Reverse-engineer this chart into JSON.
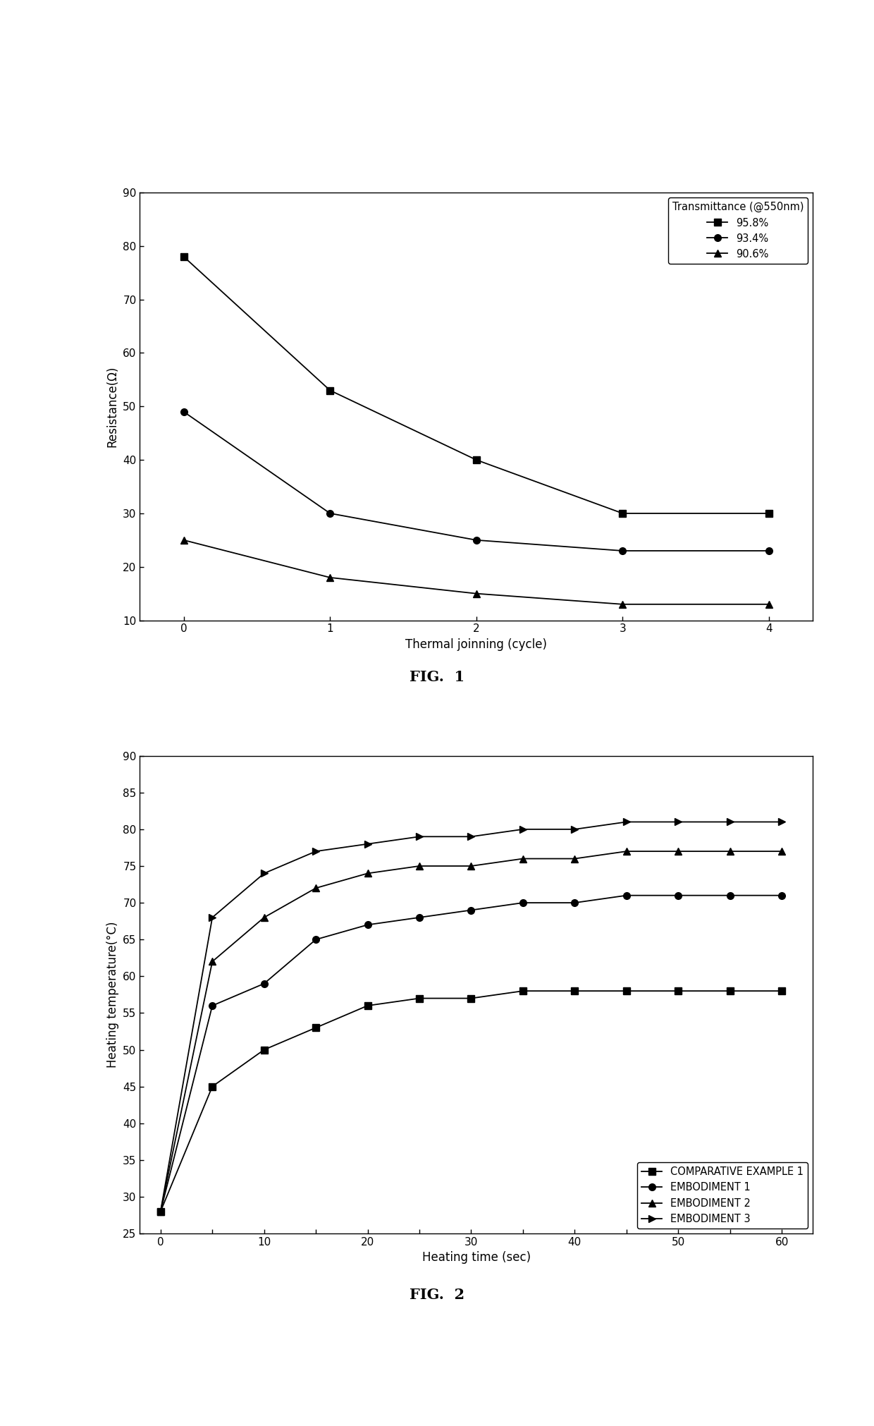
{
  "fig1": {
    "xlabel": "Thermal joinning (cycle)",
    "ylabel": "Resistance(Ω)",
    "xlim": [
      -0.3,
      4.3
    ],
    "ylim": [
      10,
      90
    ],
    "yticks": [
      10,
      20,
      30,
      40,
      50,
      60,
      70,
      80,
      90
    ],
    "xticks": [
      0,
      1,
      2,
      3,
      4
    ],
    "series": [
      {
        "label": "95.8%",
        "marker": "s",
        "x": [
          0,
          1,
          2,
          3,
          4
        ],
        "y": [
          78,
          53,
          40,
          30,
          30
        ]
      },
      {
        "label": "93.4%",
        "marker": "o",
        "x": [
          0,
          1,
          2,
          3,
          4
        ],
        "y": [
          49,
          30,
          25,
          23,
          23
        ]
      },
      {
        "label": "90.6%",
        "marker": "^",
        "x": [
          0,
          1,
          2,
          3,
          4
        ],
        "y": [
          25,
          18,
          15,
          13,
          13
        ]
      }
    ],
    "legend_title": "Transmittance (@550nm)",
    "fig_label": "FIG.  1"
  },
  "fig2": {
    "xlabel": "Heating time (sec)",
    "ylabel": "Heating temperature(°C)",
    "xlim": [
      -2,
      63
    ],
    "ylim": [
      25,
      90
    ],
    "yticks": [
      25,
      30,
      35,
      40,
      45,
      50,
      55,
      60,
      65,
      70,
      75,
      80,
      85,
      90
    ],
    "xticks": [
      0,
      5,
      10,
      15,
      20,
      25,
      30,
      35,
      40,
      45,
      50,
      55,
      60
    ],
    "xticklabels": [
      "0",
      "",
      "10",
      "",
      "20",
      "",
      "30",
      "",
      "40",
      "",
      "50",
      "",
      "60"
    ],
    "series": [
      {
        "label": "COMPARATIVE EXAMPLE 1",
        "marker": "s",
        "x": [
          0,
          5,
          10,
          15,
          20,
          25,
          30,
          35,
          40,
          45,
          50,
          55,
          60
        ],
        "y": [
          28,
          45,
          50,
          53,
          56,
          57,
          57,
          58,
          58,
          58,
          58,
          58,
          58
        ]
      },
      {
        "label": "EMBODIMENT 1",
        "marker": "o",
        "x": [
          0,
          5,
          10,
          15,
          20,
          25,
          30,
          35,
          40,
          45,
          50,
          55,
          60
        ],
        "y": [
          28,
          56,
          59,
          65,
          67,
          68,
          69,
          70,
          70,
          71,
          71,
          71,
          71
        ]
      },
      {
        "label": "EMBODIMENT 2",
        "marker": "^",
        "x": [
          0,
          5,
          10,
          15,
          20,
          25,
          30,
          35,
          40,
          45,
          50,
          55,
          60
        ],
        "y": [
          28,
          62,
          68,
          72,
          74,
          75,
          75,
          76,
          76,
          77,
          77,
          77,
          77
        ]
      },
      {
        "label": "EMBODIMENT 3",
        "marker": ">",
        "x": [
          0,
          5,
          10,
          15,
          20,
          25,
          30,
          35,
          40,
          45,
          50,
          55,
          60
        ],
        "y": [
          28,
          68,
          74,
          77,
          78,
          79,
          79,
          80,
          80,
          81,
          81,
          81,
          81
        ]
      }
    ],
    "fig_label": "FIG.  2"
  },
  "line_color": "#000000",
  "marker_color": "#000000",
  "marker_size": 7,
  "linewidth": 1.3,
  "background_color": "#ffffff",
  "tick_fontsize": 11,
  "label_fontsize": 12,
  "legend_fontsize": 10.5,
  "fig_label_fontsize": 15
}
